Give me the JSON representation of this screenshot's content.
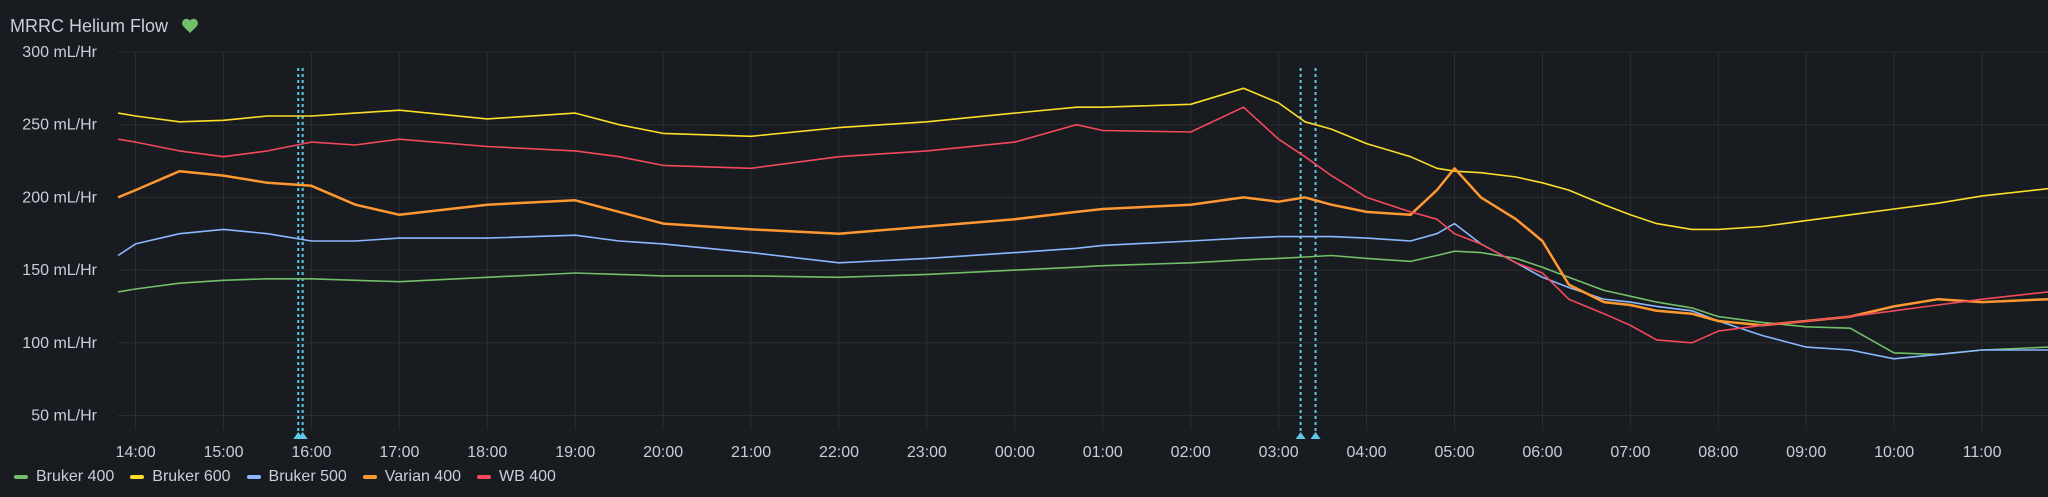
{
  "panel": {
    "title": "MRRC Helium Flow",
    "status_icon": "heart-icon",
    "status_color": "#73bf69"
  },
  "chart_data": {
    "type": "line",
    "title": "MRRC Helium Flow",
    "xlabel": "",
    "ylabel": "",
    "x_ticks": [
      "14:00",
      "15:00",
      "16:00",
      "17:00",
      "18:00",
      "19:00",
      "20:00",
      "21:00",
      "22:00",
      "23:00",
      "00:00",
      "01:00",
      "02:00",
      "03:00",
      "04:00",
      "05:00",
      "06:00",
      "07:00",
      "08:00",
      "09:00",
      "10:00",
      "11:00"
    ],
    "y_ticks": [
      "50 mL/Hr",
      "100 mL/Hr",
      "150 mL/Hr",
      "200 mL/Hr",
      "250 mL/Hr",
      "300 mL/Hr"
    ],
    "y_tick_values": [
      50,
      100,
      150,
      200,
      250,
      300
    ],
    "ylim": [
      40,
      300
    ],
    "xlim_hours": [
      13.8,
      35.75
    ],
    "grid": true,
    "legend_position": "bottom-left",
    "annotations_hours": [
      15.85,
      15.9,
      27.25,
      27.42
    ],
    "annotation_color": "#5ec8e6",
    "x": [
      13.8,
      14.0,
      14.5,
      15.0,
      15.5,
      16.0,
      16.5,
      17.0,
      18.0,
      19.0,
      19.5,
      20.0,
      21.0,
      22.0,
      23.0,
      24.0,
      24.7,
      25.0,
      26.0,
      26.6,
      27.0,
      27.3,
      27.6,
      28.0,
      28.5,
      28.8,
      29.0,
      29.3,
      29.7,
      30.0,
      30.3,
      30.7,
      31.0,
      31.3,
      31.7,
      32.0,
      32.5,
      33.0,
      33.5,
      34.0,
      34.5,
      35.0,
      35.75
    ],
    "series": [
      {
        "name": "Bruker 400",
        "color": "#73bf69",
        "values": [
          135,
          137,
          141,
          143,
          144,
          144,
          143,
          142,
          145,
          148,
          147,
          146,
          146,
          145,
          147,
          150,
          152,
          153,
          155,
          157,
          158,
          159,
          160,
          158,
          156,
          160,
          163,
          162,
          158,
          152,
          145,
          136,
          132,
          128,
          124,
          118,
          114,
          111,
          110,
          93,
          92,
          95,
          97
        ]
      },
      {
        "name": "Bruker 600",
        "color": "#fade2a",
        "values": [
          258,
          256,
          252,
          253,
          256,
          256,
          258,
          260,
          254,
          258,
          250,
          244,
          242,
          248,
          252,
          258,
          262,
          262,
          264,
          275,
          265,
          252,
          247,
          237,
          228,
          220,
          218,
          217,
          214,
          210,
          205,
          195,
          188,
          182,
          178,
          178,
          180,
          184,
          188,
          192,
          196,
          201,
          206
        ]
      },
      {
        "name": "Bruker 500",
        "color": "#8ab8ff",
        "values": [
          160,
          168,
          175,
          178,
          175,
          170,
          170,
          172,
          172,
          174,
          170,
          168,
          162,
          155,
          158,
          162,
          165,
          167,
          170,
          172,
          173,
          173,
          173,
          172,
          170,
          175,
          182,
          168,
          155,
          145,
          138,
          130,
          128,
          125,
          122,
          115,
          105,
          97,
          95,
          89,
          92,
          95,
          95
        ]
      },
      {
        "name": "Varian 400",
        "color": "#ff9830",
        "values": [
          200,
          205,
          218,
          215,
          210,
          208,
          195,
          188,
          195,
          198,
          190,
          182,
          178,
          175,
          180,
          185,
          190,
          192,
          195,
          200,
          197,
          200,
          195,
          190,
          188,
          205,
          220,
          200,
          185,
          170,
          140,
          128,
          126,
          122,
          120,
          115,
          112,
          115,
          118,
          125,
          130,
          128,
          130
        ]
      },
      {
        "name": "WB 400",
        "color": "#f2495c",
        "values": [
          240,
          238,
          232,
          228,
          232,
          238,
          236,
          240,
          235,
          232,
          228,
          222,
          220,
          228,
          232,
          238,
          250,
          246,
          245,
          262,
          240,
          228,
          215,
          200,
          190,
          185,
          175,
          168,
          155,
          148,
          130,
          120,
          112,
          102,
          100,
          108,
          112,
          115,
          118,
          122,
          126,
          130,
          135
        ]
      }
    ]
  }
}
